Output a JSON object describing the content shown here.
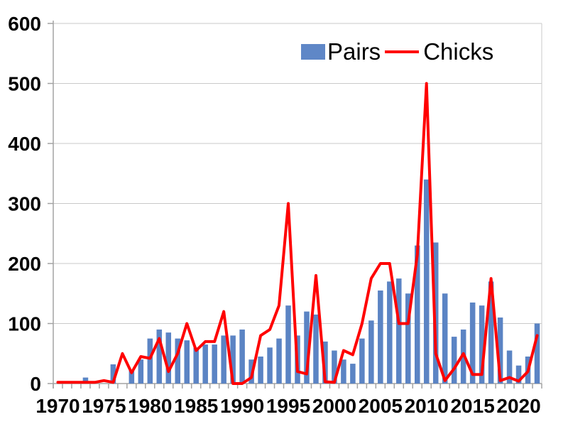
{
  "chart_data": {
    "type": "bar+line",
    "title": "",
    "x": [
      1970,
      1971,
      1972,
      1973,
      1974,
      1975,
      1976,
      1977,
      1978,
      1979,
      1980,
      1981,
      1982,
      1983,
      1984,
      1985,
      1986,
      1987,
      1988,
      1989,
      1990,
      1991,
      1992,
      1993,
      1994,
      1995,
      1996,
      1997,
      1998,
      1999,
      2000,
      2001,
      2002,
      2003,
      2004,
      2005,
      2006,
      2007,
      2008,
      2009,
      2010,
      2011,
      2012,
      2013,
      2014,
      2015,
      2016,
      2017,
      2018,
      2019,
      2020,
      2021,
      2022
    ],
    "series": [
      {
        "name": "Pairs",
        "type": "bar",
        "color": "#5b84c4",
        "values": [
          0,
          0,
          0,
          10,
          0,
          0,
          32,
          0,
          22,
          40,
          75,
          90,
          85,
          75,
          72,
          60,
          65,
          65,
          80,
          80,
          90,
          40,
          45,
          60,
          75,
          130,
          80,
          120,
          115,
          70,
          55,
          40,
          33,
          75,
          105,
          155,
          170,
          175,
          150,
          230,
          340,
          235,
          150,
          78,
          90,
          135,
          130,
          170,
          110,
          55,
          30,
          45,
          100
        ]
      },
      {
        "name": "Chicks",
        "type": "line",
        "color": "#ff0000",
        "values": [
          2,
          2,
          2,
          2,
          2,
          5,
          2,
          50,
          18,
          45,
          42,
          75,
          20,
          50,
          100,
          55,
          70,
          70,
          120,
          0,
          0,
          10,
          80,
          90,
          130,
          300,
          20,
          16,
          180,
          3,
          2,
          55,
          48,
          100,
          175,
          200,
          200,
          100,
          100,
          215,
          500,
          50,
          5,
          25,
          50,
          15,
          15,
          175,
          5,
          10,
          4,
          20,
          80
        ]
      }
    ],
    "ylim": [
      0,
      600
    ],
    "yticks": [
      0,
      100,
      200,
      300,
      400,
      500,
      600
    ],
    "xtick_labels": [
      "1970",
      "1975",
      "1980",
      "1985",
      "1990",
      "1995",
      "2000",
      "2005",
      "2010",
      "2015",
      "2020"
    ],
    "grid": "horizontal",
    "legend_position": "top-center-inside"
  },
  "style": {
    "grid_color": "#c9c9c9",
    "axis_color": "#a3a3a3",
    "label_color": "#000000",
    "background": "#ffffff"
  }
}
